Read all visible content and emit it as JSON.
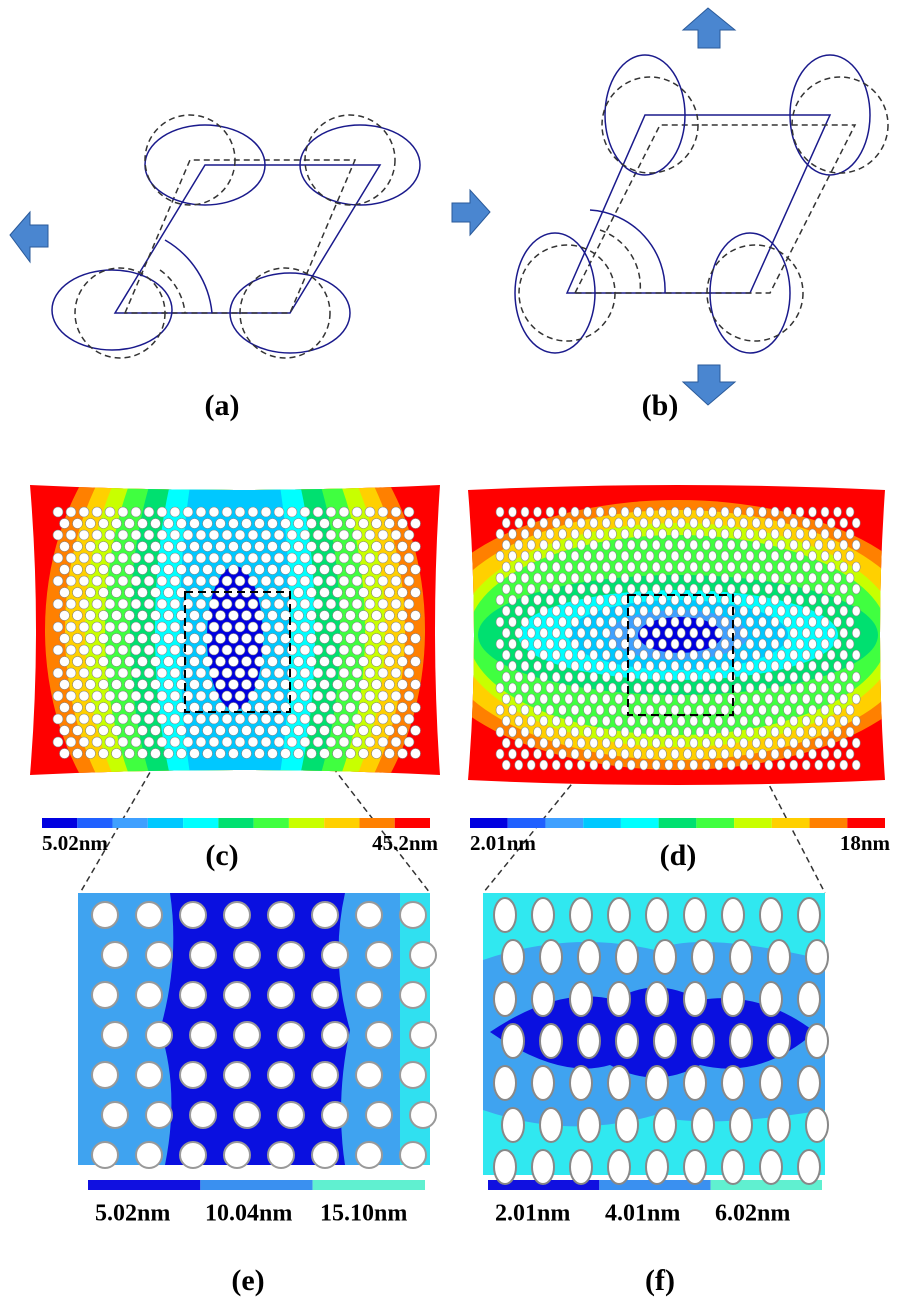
{
  "panels": [
    {
      "label": "(a)"
    },
    {
      "label": "(b)"
    },
    {
      "label": "(c)",
      "scale": [
        "5.02nm",
        "45.2nm"
      ]
    },
    {
      "label": "(d)",
      "scale": [
        "2.01nm",
        "18nm"
      ]
    },
    {
      "label": "(e)",
      "scale": [
        "5.02nm",
        "10.04nm",
        "15.10nm"
      ]
    },
    {
      "label": "(f)",
      "scale": [
        "2.01nm",
        "4.01nm",
        "6.02nm"
      ]
    }
  ]
}
